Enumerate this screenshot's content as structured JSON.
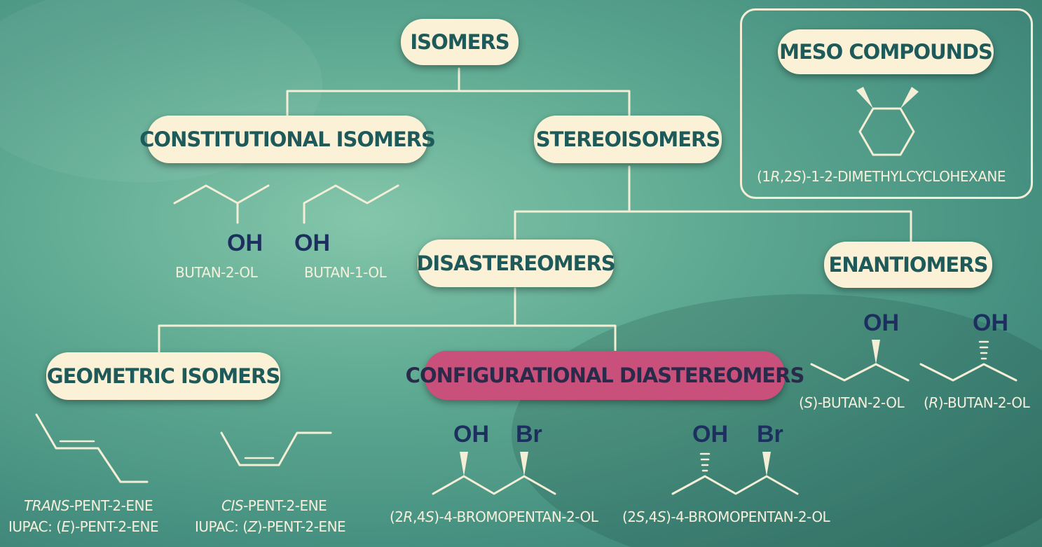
{
  "nodes": {
    "isomers": "ISOMERS",
    "constitutional": "CONSTITUTIONAL ISOMERS",
    "stereoisomers": "STEREOISOMERS",
    "meso": "MESO COMPOUNDS",
    "diastereomers": "DISASTEREOMERS",
    "enantiomers": "ENANTIOMERS",
    "geometric": "GEOMETRIC ISOMERS",
    "configurational": "CONFIGURATIONAL DIASTEREOMERS"
  },
  "labels": {
    "oh": "OH",
    "br": "Br",
    "butan2ol": "BUTAN-2-OL",
    "butan1ol": "BUTAN-1-OL",
    "meso_prefix": "(1",
    "meso_r": "R",
    "meso_comma": ",2",
    "meso_s": "S",
    "meso_suffix": ")-1-2-DIMETHYLCYCLOHEXANE",
    "s_open": "(",
    "s_letter": "S",
    "s_rest": ")-BUTAN-2-OL",
    "r_open": "(",
    "r_letter": "R",
    "r_rest": ")-BUTAN-2-OL",
    "trans_italic": "TRANS",
    "trans_rest": "-PENT-2-ENE",
    "trans_iupac_pre": "IUPAC: (",
    "trans_iupac_letter": "E",
    "trans_iupac_rest": ")-PENT-2-ENE",
    "cis_italic": "CIS",
    "cis_rest": "-PENT-2-ENE",
    "cis_iupac_pre": "IUPAC: (",
    "cis_iupac_letter": "Z",
    "cis_iupac_rest": ")-PENT-2-ENE",
    "rs_open": "(2",
    "rs_r": "R",
    "rs_mid": ",4",
    "rs_s": "S",
    "rs_rest": ")-4-BROMOPENTAN-2-OL",
    "ss_open": "(2",
    "ss_s1": "S",
    "ss_mid": ",4",
    "ss_s2": "S",
    "ss_rest": ")-4-BROMOPENTAN-2-OL"
  },
  "colors": {
    "background": "#4f9e87",
    "pill": "#fbf1d6",
    "pill_text": "#1e5a5a",
    "highlight_pill": "#c8507a",
    "functional_group": "#1c2f5e",
    "line": "#f5eed7"
  }
}
